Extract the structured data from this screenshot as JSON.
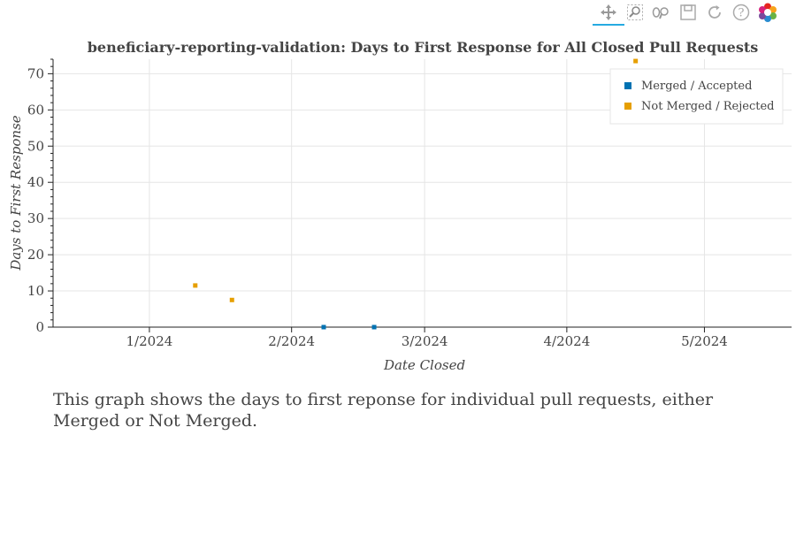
{
  "toolbar": {
    "tools": [
      {
        "name": "pan-icon",
        "active": true
      },
      {
        "name": "box-zoom-icon",
        "active": false
      },
      {
        "name": "wheel-zoom-icon",
        "active": false
      },
      {
        "name": "save-icon",
        "active": false
      },
      {
        "name": "reset-icon",
        "active": false
      },
      {
        "name": "help-icon",
        "active": false
      },
      {
        "name": "bokeh-logo-icon",
        "active": false
      }
    ]
  },
  "chart_data": {
    "type": "scatter",
    "title": "beneficiary-reporting-validation: Days to First Response for All Closed Pull Requests",
    "xlabel": "Date Closed",
    "ylabel": "Days to First Response",
    "xlim": [
      "2023-12-11",
      "2024-05-20"
    ],
    "ylim": [
      0,
      74
    ],
    "x_ticks": [
      {
        "date": "2024-01-01",
        "label": "1/2024"
      },
      {
        "date": "2024-02-01",
        "label": "2/2024"
      },
      {
        "date": "2024-03-01",
        "label": "3/2024"
      },
      {
        "date": "2024-04-01",
        "label": "4/2024"
      },
      {
        "date": "2024-05-01",
        "label": "5/2024"
      }
    ],
    "y_ticks": [
      0,
      10,
      20,
      30,
      40,
      50,
      60,
      70
    ],
    "grid": true,
    "legend_position": "top-right",
    "series": [
      {
        "name": "Merged / Accepted",
        "color": "#0072b2",
        "points": [
          {
            "x": "2024-02-08",
            "y": 0
          },
          {
            "x": "2024-02-19",
            "y": 0
          }
        ]
      },
      {
        "name": "Not Merged / Rejected",
        "color": "#e69f00",
        "points": [
          {
            "x": "2024-01-11",
            "y": 11.5
          },
          {
            "x": "2024-01-19",
            "y": 7.5
          },
          {
            "x": "2024-04-16",
            "y": 73.5
          }
        ]
      }
    ]
  },
  "caption": "This graph shows the days to first reponse for individual pull requests, either Merged or Not Merged."
}
